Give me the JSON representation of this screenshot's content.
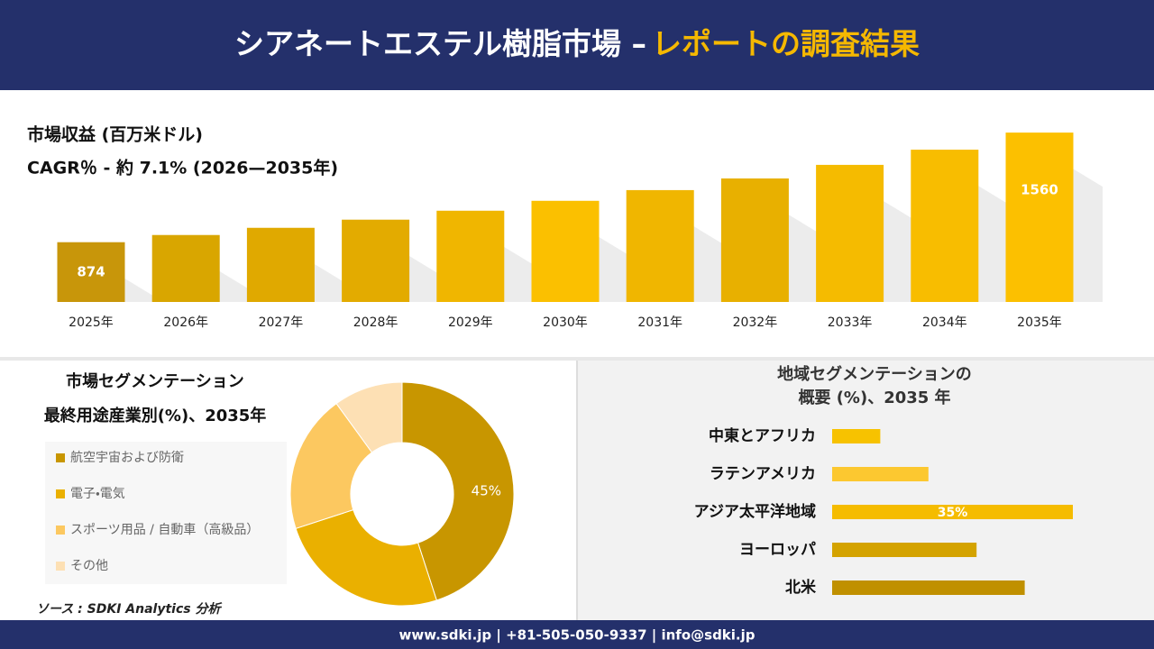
{
  "header": {
    "title": "シアネートエステル樹脂市場 –",
    "title_highlight": "レポートの調査結果"
  },
  "chart_data": [
    {
      "type": "bar",
      "title": "市場収益 (百万米ドル)",
      "subtitle": "CAGR％ - 約 7.1% (2026—2035年)",
      "categories": [
        "2025年",
        "2026年",
        "2027年",
        "2028年",
        "2029年",
        "2030年",
        "2031年",
        "2032年",
        "2033年",
        "2034年",
        "2035年"
      ],
      "values": [
        874,
        919,
        964,
        1015,
        1071,
        1133,
        1200,
        1273,
        1358,
        1453,
        1560
      ],
      "value_labels": [
        "874",
        null,
        null,
        null,
        null,
        null,
        null,
        null,
        null,
        null,
        "1560"
      ],
      "colors": [
        "#c8960a",
        "#d9a600",
        "#e0a900",
        "#e3ab00",
        "#f0b600",
        "#fbc000",
        "#f0b600",
        "#e8b000",
        "#f5bb00",
        "#f8bd00",
        "#fcc000"
      ],
      "ylim": [
        500,
        1600
      ]
    },
    {
      "type": "donut",
      "title": "市場セグメンテーション",
      "subtitle": "最終用途産業別(%)、2035年",
      "categories": [
        "航空宇宙および防衛",
        "電子・電気",
        "スポーツ用品 / 自動車（高級品）",
        "その他"
      ],
      "values": [
        45,
        25,
        20,
        10
      ],
      "value_labels": [
        "45%",
        null,
        null,
        null
      ],
      "colors": [
        "#c89600",
        "#eab000",
        "#fcc860",
        "#fde0b4"
      ]
    },
    {
      "type": "hbar",
      "title": [
        "地域セグメンテーションの",
        "概要 (%)、2035 年"
      ],
      "categories": [
        "中東とアフリカ",
        "ラテンアメリカ",
        "アジア太平洋地域",
        "ヨーロッパ",
        "北米"
      ],
      "values": [
        7,
        14,
        35,
        21,
        28
      ],
      "value_labels": [
        null,
        null,
        "35%",
        null,
        null
      ],
      "colors": [
        "#f7c200",
        "#fcc830",
        "#f5bc00",
        "#d4a300",
        "#c09000"
      ],
      "xlim": [
        0,
        35
      ]
    }
  ],
  "source": "ソース : SDKI Analytics 分析",
  "footer": "www.sdki.jp | +81-505-050-9337 | info@sdki.jp"
}
